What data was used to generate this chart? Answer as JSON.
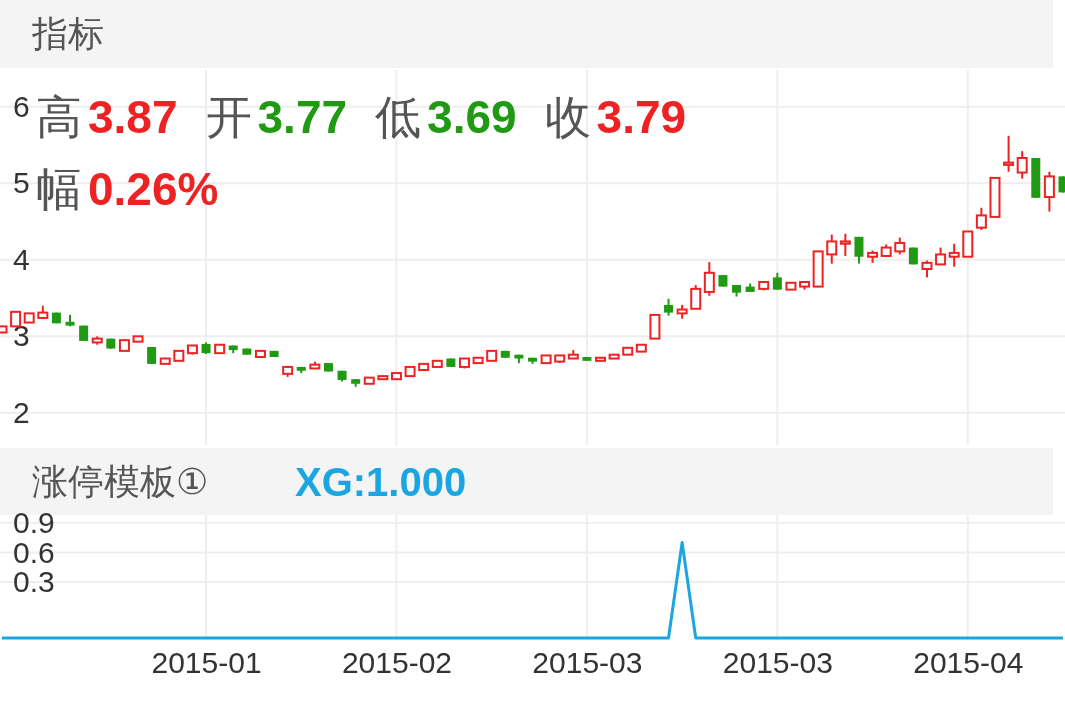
{
  "chart_data": [
    {
      "type": "candlestick",
      "title": "指标",
      "categories": [
        null,
        null,
        null,
        null,
        null,
        null,
        null,
        null,
        null,
        null,
        null,
        null,
        null,
        null,
        null,
        "2015-01",
        null,
        null,
        null,
        null,
        null,
        null,
        null,
        null,
        null,
        null,
        null,
        null,
        null,
        "2015-02",
        null,
        null,
        null,
        null,
        null,
        null,
        null,
        null,
        null,
        null,
        null,
        null,
        null,
        "2015-03",
        null,
        null,
        null,
        null,
        null,
        null,
        null,
        null,
        null,
        null,
        null,
        null,
        null,
        "2015-03",
        null,
        null,
        null,
        null,
        null,
        null,
        null,
        null,
        null,
        null,
        null,
        null,
        null,
        "2015-04",
        null,
        null,
        null,
        null,
        null,
        null,
        null
      ],
      "ohlc": [
        [
          3.05,
          3.13,
          3.05,
          3.13
        ],
        [
          3.13,
          3.32,
          3.13,
          3.32
        ],
        [
          3.18,
          3.3,
          3.18,
          3.3
        ],
        [
          3.24,
          3.4,
          3.23,
          3.31
        ],
        [
          3.31,
          3.31,
          3.17,
          3.17
        ],
        [
          3.19,
          3.28,
          3.13,
          3.14
        ],
        [
          3.14,
          3.14,
          2.94,
          2.94
        ],
        [
          2.92,
          3.0,
          2.89,
          2.97
        ],
        [
          2.97,
          2.97,
          2.84,
          2.84
        ],
        [
          2.81,
          2.95,
          2.81,
          2.95
        ],
        [
          2.93,
          3.0,
          2.93,
          3.0
        ],
        [
          2.86,
          2.86,
          2.64,
          2.64
        ],
        [
          2.64,
          2.71,
          2.64,
          2.71
        ],
        [
          2.68,
          2.81,
          2.68,
          2.81
        ],
        [
          2.78,
          2.88,
          2.76,
          2.88
        ],
        [
          2.9,
          2.92,
          2.77,
          2.78
        ],
        [
          2.78,
          2.89,
          2.77,
          2.89
        ],
        [
          2.88,
          2.88,
          2.78,
          2.82
        ],
        [
          2.84,
          2.84,
          2.76,
          2.76
        ],
        [
          2.73,
          2.81,
          2.73,
          2.81
        ],
        [
          2.81,
          2.81,
          2.73,
          2.73
        ],
        [
          2.51,
          2.61,
          2.47,
          2.6
        ],
        [
          2.6,
          2.6,
          2.52,
          2.55
        ],
        [
          2.58,
          2.67,
          2.58,
          2.63
        ],
        [
          2.65,
          2.65,
          2.54,
          2.54
        ],
        [
          2.55,
          2.55,
          2.41,
          2.43
        ],
        [
          2.44,
          2.44,
          2.34,
          2.38
        ],
        [
          2.38,
          2.46,
          2.38,
          2.46
        ],
        [
          2.44,
          2.48,
          2.44,
          2.48
        ],
        [
          2.44,
          2.52,
          2.44,
          2.52
        ],
        [
          2.48,
          2.6,
          2.48,
          2.6
        ],
        [
          2.56,
          2.64,
          2.56,
          2.64
        ],
        [
          2.6,
          2.68,
          2.6,
          2.68
        ],
        [
          2.71,
          2.71,
          2.6,
          2.6
        ],
        [
          2.6,
          2.71,
          2.58,
          2.71
        ],
        [
          2.65,
          2.73,
          2.65,
          2.72
        ],
        [
          2.68,
          2.81,
          2.68,
          2.81
        ],
        [
          2.81,
          2.81,
          2.72,
          2.72
        ],
        [
          2.76,
          2.76,
          2.65,
          2.71
        ],
        [
          2.72,
          2.72,
          2.64,
          2.67
        ],
        [
          2.65,
          2.75,
          2.65,
          2.75
        ],
        [
          2.67,
          2.75,
          2.65,
          2.75
        ],
        [
          2.71,
          2.82,
          2.71,
          2.76
        ],
        [
          2.73,
          2.73,
          2.68,
          2.68
        ],
        [
          2.68,
          2.72,
          2.68,
          2.72
        ],
        [
          2.71,
          2.77,
          2.71,
          2.76
        ],
        [
          2.76,
          2.85,
          2.76,
          2.85
        ],
        [
          2.8,
          2.89,
          2.8,
          2.89
        ],
        [
          2.97,
          3.28,
          2.97,
          3.28
        ],
        [
          3.41,
          3.49,
          3.27,
          3.31
        ],
        [
          3.3,
          3.41,
          3.23,
          3.35
        ],
        [
          3.36,
          3.67,
          3.36,
          3.62
        ],
        [
          3.58,
          3.97,
          3.53,
          3.83
        ],
        [
          3.8,
          3.8,
          3.65,
          3.65
        ],
        [
          3.67,
          3.67,
          3.52,
          3.57
        ],
        [
          3.65,
          3.69,
          3.58,
          3.58
        ],
        [
          3.62,
          3.71,
          3.6,
          3.71
        ],
        [
          3.77,
          3.83,
          3.61,
          3.61
        ],
        [
          3.61,
          3.7,
          3.61,
          3.7
        ],
        [
          3.65,
          3.71,
          3.61,
          3.71
        ],
        [
          3.65,
          4.11,
          3.65,
          4.11
        ],
        [
          4.07,
          4.33,
          3.95,
          4.24
        ],
        [
          4.21,
          4.34,
          4.05,
          4.24
        ],
        [
          4.3,
          4.3,
          3.95,
          4.04
        ],
        [
          4.04,
          4.12,
          3.96,
          4.09
        ],
        [
          4.05,
          4.2,
          4.05,
          4.16
        ],
        [
          4.11,
          4.29,
          4.07,
          4.22
        ],
        [
          4.16,
          4.16,
          3.94,
          3.94
        ],
        [
          3.88,
          3.99,
          3.77,
          3.96
        ],
        [
          3.94,
          4.16,
          3.94,
          4.07
        ],
        [
          4.04,
          4.21,
          3.91,
          4.09
        ],
        [
          4.04,
          4.37,
          4.04,
          4.37
        ],
        [
          4.42,
          4.68,
          4.39,
          4.58
        ],
        [
          4.56,
          5.07,
          4.56,
          5.07
        ],
        [
          5.24,
          5.62,
          5.15,
          5.27
        ],
        [
          5.14,
          5.42,
          5.06,
          5.33
        ],
        [
          5.33,
          5.33,
          4.81,
          4.81
        ],
        [
          4.82,
          5.15,
          4.63,
          5.09
        ],
        [
          5.09,
          5.09,
          4.88,
          4.88
        ]
      ],
      "ylim": [
        1.58,
        6.48
      ],
      "yticks": [
        2,
        3,
        4,
        5,
        6
      ],
      "grid": true,
      "tick_labels": "y",
      "annotations": [
        "高",
        "3.87",
        "开",
        "3.77",
        "低",
        "3.69",
        "收",
        "3.79",
        "幅",
        "0.26%"
      ]
    },
    {
      "type": "line",
      "title": "涨停模板①",
      "categories": [
        null,
        null,
        null,
        null,
        null,
        null,
        null,
        null,
        null,
        null,
        null,
        null,
        null,
        null,
        null,
        "2015-01",
        null,
        null,
        null,
        null,
        null,
        null,
        null,
        null,
        null,
        null,
        null,
        null,
        null,
        "2015-02",
        null,
        null,
        null,
        null,
        null,
        null,
        null,
        null,
        null,
        null,
        null,
        null,
        null,
        "2015-03",
        null,
        null,
        null,
        null,
        null,
        null,
        null,
        null,
        null,
        null,
        null,
        null,
        null,
        "2015-03",
        null,
        null,
        null,
        null,
        null,
        null,
        null,
        null,
        null,
        null,
        null,
        null,
        null,
        "2015-04",
        null,
        null,
        null,
        null,
        null,
        null,
        null
      ],
      "series": [
        {
          "color": "#1ba6e2",
          "values": [
            -0.27,
            -0.27,
            -0.27,
            -0.27,
            -0.27,
            -0.27,
            -0.27,
            -0.27,
            -0.27,
            -0.27,
            -0.27,
            -0.27,
            -0.27,
            -0.27,
            -0.27,
            -0.27,
            -0.27,
            -0.27,
            -0.27,
            -0.27,
            -0.27,
            -0.27,
            -0.27,
            -0.27,
            -0.27,
            -0.27,
            -0.27,
            -0.27,
            -0.27,
            -0.27,
            -0.27,
            -0.27,
            -0.27,
            -0.27,
            -0.27,
            -0.27,
            -0.27,
            -0.27,
            -0.27,
            -0.27,
            -0.27,
            -0.27,
            -0.27,
            -0.27,
            -0.27,
            -0.27,
            -0.27,
            -0.27,
            -0.27,
            -0.27,
            0.7,
            -0.27,
            -0.27,
            -0.27,
            -0.27,
            -0.27,
            -0.27,
            -0.27,
            -0.27,
            -0.27,
            -0.27,
            -0.27,
            -0.27,
            -0.27,
            -0.27,
            -0.27,
            -0.27,
            -0.27,
            -0.27,
            -0.27,
            -0.27,
            -0.27,
            -0.27,
            -0.27,
            -0.27,
            -0.27,
            -0.27,
            -0.27,
            -0.27
          ]
        }
      ],
      "ylim": [
        -0.29,
        0.98
      ],
      "yticks": [
        0.3,
        0.6,
        0.9
      ],
      "grid": true,
      "annotations": [
        "XG:1.000"
      ]
    }
  ]
}
